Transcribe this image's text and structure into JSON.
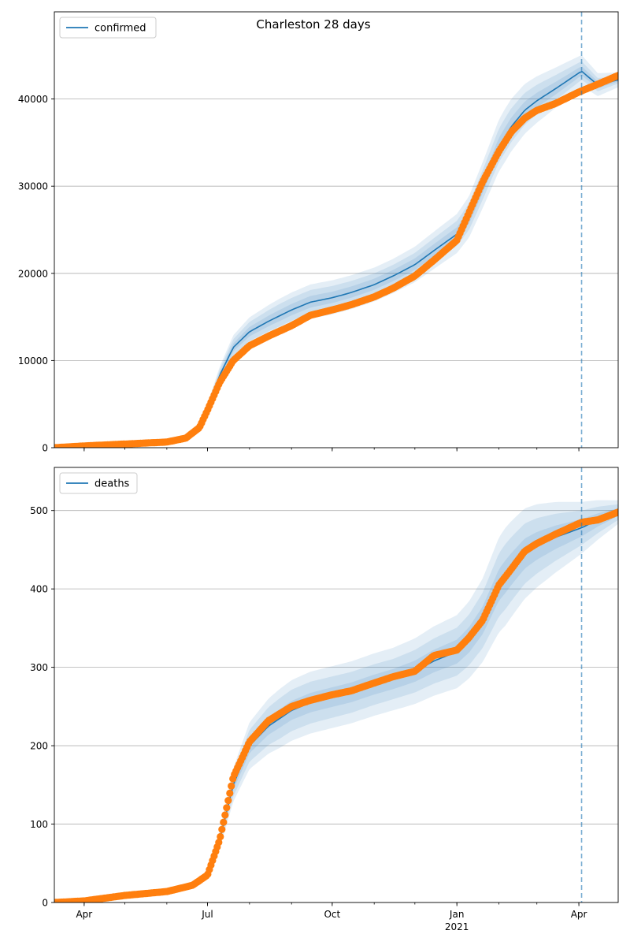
{
  "chart_data": {
    "type": "line",
    "title": "Charleston 28 days",
    "x_range": [
      "2020-03-10",
      "2021-04-30"
    ],
    "forecast_start": "2021-04-03",
    "x_ticks": [
      {
        "date": "2020-04-01",
        "label": "Apr",
        "sub": ""
      },
      {
        "date": "2020-07-01",
        "label": "Jul",
        "sub": ""
      },
      {
        "date": "2020-10-01",
        "label": "Oct",
        "sub": ""
      },
      {
        "date": "2021-01-01",
        "label": "Jan",
        "sub": "2021"
      },
      {
        "date": "2021-04-01",
        "label": "Apr",
        "sub": ""
      }
    ],
    "colors": {
      "model": "#1f77b4",
      "observed": "#ff7f0e",
      "band": "#1f77b4",
      "grid": "#b0b0b0",
      "forecast_line": "#1f77b4"
    },
    "panels": [
      {
        "legend": "confirmed",
        "legend_placement": "top-left",
        "ylim": [
          0,
          50000
        ],
        "y_ticks": [
          0,
          10000,
          20000,
          30000,
          40000
        ],
        "grid": true,
        "model": [
          [
            "2020-03-10",
            0
          ],
          [
            "2020-05-01",
            250
          ],
          [
            "2020-06-01",
            600
          ],
          [
            "2020-06-15",
            1100
          ],
          [
            "2020-06-25",
            2300
          ],
          [
            "2020-07-01",
            4500
          ],
          [
            "2020-07-10",
            8300
          ],
          [
            "2020-07-20",
            11500
          ],
          [
            "2020-08-01",
            13300
          ],
          [
            "2020-08-15",
            14500
          ],
          [
            "2020-09-01",
            15800
          ],
          [
            "2020-09-15",
            16700
          ],
          [
            "2020-10-01",
            17200
          ],
          [
            "2020-10-15",
            17800
          ],
          [
            "2020-11-01",
            18700
          ],
          [
            "2020-11-15",
            19700
          ],
          [
            "2020-12-01",
            21000
          ],
          [
            "2020-12-15",
            22600
          ],
          [
            "2021-01-01",
            24500
          ],
          [
            "2021-01-10",
            26400
          ],
          [
            "2021-01-20",
            30000
          ],
          [
            "2021-02-01",
            34500
          ],
          [
            "2021-02-10",
            36800
          ],
          [
            "2021-02-20",
            38700
          ],
          [
            "2021-03-01",
            39800
          ],
          [
            "2021-03-15",
            41200
          ],
          [
            "2021-04-03",
            43200
          ],
          [
            "2021-04-15",
            41600
          ],
          [
            "2021-04-30",
            42200
          ]
        ],
        "bands": [
          {
            "opacity": 0.12,
            "spread": [
              [
                0,
                0
              ],
              [
                0.12,
                0.11
              ],
              [
                0.12,
                0.13
              ],
              [
                0.1,
                0.1
              ],
              [
                0.08,
                0.09
              ],
              [
                0.02,
                0.02
              ]
            ]
          },
          {
            "opacity": 0.12,
            "spread": [
              [
                0,
                0
              ],
              [
                0.08,
                0.07
              ],
              [
                0.08,
                0.09
              ],
              [
                0.06,
                0.065
              ],
              [
                0.05,
                0.06
              ],
              [
                0.01,
                0.01
              ]
            ]
          },
          {
            "opacity": 0.12,
            "spread": [
              [
                0,
                0
              ],
              [
                0.04,
                0.035
              ],
              [
                0.04,
                0.045
              ],
              [
                0.03,
                0.035
              ],
              [
                0.025,
                0.03
              ],
              [
                0.005,
                0.005
              ]
            ]
          }
        ],
        "observed": [
          [
            "2020-03-10",
            0
          ],
          [
            "2020-04-01",
            200
          ],
          [
            "2020-05-01",
            420
          ],
          [
            "2020-06-01",
            650
          ],
          [
            "2020-06-15",
            1100
          ],
          [
            "2020-06-25",
            2300
          ],
          [
            "2020-07-01",
            4300
          ],
          [
            "2020-07-10",
            7500
          ],
          [
            "2020-07-20",
            10000
          ],
          [
            "2020-08-01",
            11700
          ],
          [
            "2020-08-15",
            12800
          ],
          [
            "2020-09-01",
            14000
          ],
          [
            "2020-09-15",
            15200
          ],
          [
            "2020-10-01",
            15800
          ],
          [
            "2020-10-15",
            16400
          ],
          [
            "2020-11-01",
            17300
          ],
          [
            "2020-11-15",
            18300
          ],
          [
            "2020-12-01",
            19700
          ],
          [
            "2020-12-15",
            21500
          ],
          [
            "2021-01-01",
            23800
          ],
          [
            "2021-01-10",
            27000
          ],
          [
            "2021-01-20",
            30500
          ],
          [
            "2021-02-01",
            34000
          ],
          [
            "2021-02-10",
            36200
          ],
          [
            "2021-02-20",
            37800
          ],
          [
            "2021-03-01",
            38700
          ],
          [
            "2021-03-15",
            39500
          ],
          [
            "2021-04-01",
            40800
          ],
          [
            "2021-04-15",
            41700
          ],
          [
            "2021-04-30",
            42700
          ]
        ]
      },
      {
        "legend": "deaths",
        "legend_placement": "top-left",
        "ylim": [
          0,
          555
        ],
        "y_ticks": [
          0,
          100,
          200,
          300,
          400,
          500
        ],
        "grid": true,
        "model": [
          [
            "2020-03-10",
            0
          ],
          [
            "2020-05-01",
            8
          ],
          [
            "2020-06-01",
            14
          ],
          [
            "2020-06-20",
            22
          ],
          [
            "2020-07-01",
            35
          ],
          [
            "2020-07-10",
            80
          ],
          [
            "2020-07-20",
            150
          ],
          [
            "2020-08-01",
            200
          ],
          [
            "2020-08-15",
            225
          ],
          [
            "2020-09-01",
            245
          ],
          [
            "2020-09-15",
            255
          ],
          [
            "2020-10-01",
            262
          ],
          [
            "2020-10-15",
            268
          ],
          [
            "2020-11-01",
            278
          ],
          [
            "2020-11-15",
            285
          ],
          [
            "2020-12-01",
            295
          ],
          [
            "2020-12-15",
            308
          ],
          [
            "2021-01-01",
            320
          ],
          [
            "2021-01-10",
            335
          ],
          [
            "2021-01-20",
            360
          ],
          [
            "2021-02-01",
            405
          ],
          [
            "2021-02-10",
            425
          ],
          [
            "2021-02-20",
            445
          ],
          [
            "2021-03-01",
            455
          ],
          [
            "2021-03-15",
            466
          ],
          [
            "2021-04-03",
            478
          ],
          [
            "2021-04-15",
            488
          ],
          [
            "2021-04-30",
            498
          ]
        ],
        "bands": [
          {
            "opacity": 0.12,
            "spread": [
              [
                0,
                0
              ],
              [
                0.12,
                0.12
              ],
              [
                0.16,
                0.16
              ],
              [
                0.14,
                0.14
              ],
              [
                0.15,
                0.15
              ],
              [
                0.03,
                0.03
              ]
            ]
          },
          {
            "opacity": 0.12,
            "spread": [
              [
                0,
                0
              ],
              [
                0.08,
                0.08
              ],
              [
                0.11,
                0.11
              ],
              [
                0.09,
                0.09
              ],
              [
                0.1,
                0.1
              ],
              [
                0.02,
                0.02
              ]
            ]
          },
          {
            "opacity": 0.12,
            "spread": [
              [
                0,
                0
              ],
              [
                0.04,
                0.04
              ],
              [
                0.05,
                0.05
              ],
              [
                0.045,
                0.045
              ],
              [
                0.05,
                0.05
              ],
              [
                0.01,
                0.01
              ]
            ]
          }
        ],
        "observed": [
          [
            "2020-03-10",
            0
          ],
          [
            "2020-04-01",
            2
          ],
          [
            "2020-05-01",
            9
          ],
          [
            "2020-06-01",
            14
          ],
          [
            "2020-06-20",
            22
          ],
          [
            "2020-07-01",
            35
          ],
          [
            "2020-07-10",
            80
          ],
          [
            "2020-07-20",
            160
          ],
          [
            "2020-08-01",
            205
          ],
          [
            "2020-08-15",
            232
          ],
          [
            "2020-09-01",
            250
          ],
          [
            "2020-09-15",
            258
          ],
          [
            "2020-10-01",
            265
          ],
          [
            "2020-10-15",
            270
          ],
          [
            "2020-11-01",
            280
          ],
          [
            "2020-11-15",
            288
          ],
          [
            "2020-12-01",
            295
          ],
          [
            "2020-12-15",
            315
          ],
          [
            "2021-01-01",
            322
          ],
          [
            "2021-01-10",
            338
          ],
          [
            "2021-01-20",
            360
          ],
          [
            "2021-02-01",
            405
          ],
          [
            "2021-02-10",
            425
          ],
          [
            "2021-02-20",
            448
          ],
          [
            "2021-03-01",
            458
          ],
          [
            "2021-03-15",
            470
          ],
          [
            "2021-04-03",
            485
          ],
          [
            "2021-04-15",
            488
          ],
          [
            "2021-04-30",
            498
          ]
        ]
      }
    ]
  }
}
